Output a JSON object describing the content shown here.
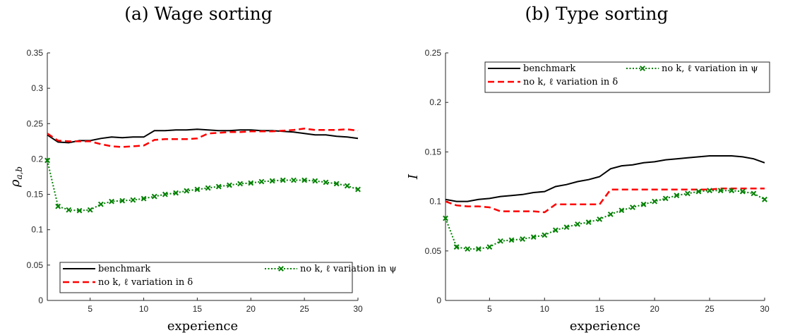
{
  "chart_data": [
    {
      "type": "line",
      "title": "(a) Wage sorting",
      "xlabel": "experience",
      "ylabel": "ρ",
      "ylabel_sub": "a,b",
      "xlim": [
        1,
        30
      ],
      "ylim": [
        0,
        0.35
      ],
      "xticks": [
        5,
        10,
        15,
        20,
        25,
        30
      ],
      "xtick_labels": [
        "5",
        "10",
        "15",
        "20",
        "25",
        "30"
      ],
      "yticks": [
        0,
        0.05,
        0.1,
        0.15,
        0.2,
        0.25,
        0.3,
        0.35
      ],
      "ytick_labels": [
        "0",
        "0.05",
        "0.1",
        "0.15",
        "0.2",
        "0.25",
        "0.3",
        "0.35"
      ],
      "grid": false,
      "legend_position": "bottom",
      "x": [
        1,
        2,
        3,
        4,
        5,
        6,
        7,
        8,
        9,
        10,
        11,
        12,
        13,
        14,
        15,
        16,
        17,
        18,
        19,
        20,
        21,
        22,
        23,
        24,
        25,
        26,
        27,
        28,
        29,
        30
      ],
      "series": [
        {
          "name": "benchmark",
          "style": "solid",
          "color": "#000000",
          "values": [
            0.234,
            0.224,
            0.223,
            0.226,
            0.226,
            0.229,
            0.231,
            0.23,
            0.231,
            0.231,
            0.24,
            0.24,
            0.241,
            0.241,
            0.242,
            0.241,
            0.24,
            0.24,
            0.241,
            0.241,
            0.24,
            0.24,
            0.239,
            0.238,
            0.236,
            0.234,
            0.234,
            0.232,
            0.231,
            0.229
          ]
        },
        {
          "name": "no k, ℓ variation in δ",
          "style": "dashed",
          "color": "#ff0000",
          "values": [
            0.236,
            0.226,
            0.225,
            0.225,
            0.225,
            0.221,
            0.218,
            0.217,
            0.218,
            0.219,
            0.227,
            0.228,
            0.228,
            0.228,
            0.229,
            0.236,
            0.237,
            0.238,
            0.238,
            0.239,
            0.239,
            0.239,
            0.24,
            0.241,
            0.243,
            0.241,
            0.241,
            0.241,
            0.242,
            0.24
          ]
        },
        {
          "name": "no k, ℓ variation in ψ",
          "style": "dotted-x",
          "color": "#008000",
          "values": [
            0.198,
            0.133,
            0.128,
            0.127,
            0.128,
            0.136,
            0.14,
            0.141,
            0.142,
            0.144,
            0.147,
            0.15,
            0.152,
            0.155,
            0.157,
            0.159,
            0.161,
            0.163,
            0.165,
            0.166,
            0.168,
            0.169,
            0.17,
            0.17,
            0.17,
            0.169,
            0.167,
            0.165,
            0.162,
            0.157
          ]
        }
      ]
    },
    {
      "type": "line",
      "title": "(b) Type sorting",
      "xlabel": "experience",
      "ylabel": "I",
      "ylabel_sub": "",
      "xlim": [
        1,
        30
      ],
      "ylim": [
        0,
        0.25
      ],
      "xticks": [
        5,
        10,
        15,
        20,
        25,
        30
      ],
      "xtick_labels": [
        "5",
        "10",
        "15",
        "20",
        "25",
        "30"
      ],
      "yticks": [
        0,
        0.05,
        0.1,
        0.15,
        0.2,
        0.25
      ],
      "ytick_labels": [
        "0",
        "0.05",
        "0.1",
        "0.15",
        "0.2",
        "0.25"
      ],
      "grid": false,
      "legend_position": "top",
      "x": [
        1,
        2,
        3,
        4,
        5,
        6,
        7,
        8,
        9,
        10,
        11,
        12,
        13,
        14,
        15,
        16,
        17,
        18,
        19,
        20,
        21,
        22,
        23,
        24,
        25,
        26,
        27,
        28,
        29,
        30
      ],
      "series": [
        {
          "name": "benchmark",
          "style": "solid",
          "color": "#000000",
          "values": [
            0.102,
            0.1,
            0.1,
            0.102,
            0.103,
            0.105,
            0.106,
            0.107,
            0.109,
            0.11,
            0.115,
            0.117,
            0.12,
            0.122,
            0.125,
            0.133,
            0.136,
            0.137,
            0.139,
            0.14,
            0.142,
            0.143,
            0.144,
            0.145,
            0.146,
            0.146,
            0.146,
            0.145,
            0.143,
            0.139
          ]
        },
        {
          "name": "no k, ℓ variation in δ",
          "style": "dashed",
          "color": "#ff0000",
          "values": [
            0.1,
            0.096,
            0.095,
            0.095,
            0.094,
            0.09,
            0.09,
            0.09,
            0.09,
            0.089,
            0.097,
            0.097,
            0.097,
            0.097,
            0.097,
            0.112,
            0.112,
            0.112,
            0.112,
            0.112,
            0.112,
            0.112,
            0.112,
            0.112,
            0.112,
            0.113,
            0.113,
            0.113,
            0.113,
            0.113
          ]
        },
        {
          "name": "no k, ℓ variation in ψ",
          "style": "dotted-x",
          "color": "#008000",
          "values": [
            0.083,
            0.054,
            0.052,
            0.052,
            0.054,
            0.06,
            0.061,
            0.062,
            0.064,
            0.066,
            0.071,
            0.074,
            0.077,
            0.079,
            0.082,
            0.087,
            0.091,
            0.094,
            0.097,
            0.1,
            0.103,
            0.106,
            0.108,
            0.11,
            0.111,
            0.111,
            0.111,
            0.11,
            0.108,
            0.102
          ]
        }
      ]
    }
  ]
}
